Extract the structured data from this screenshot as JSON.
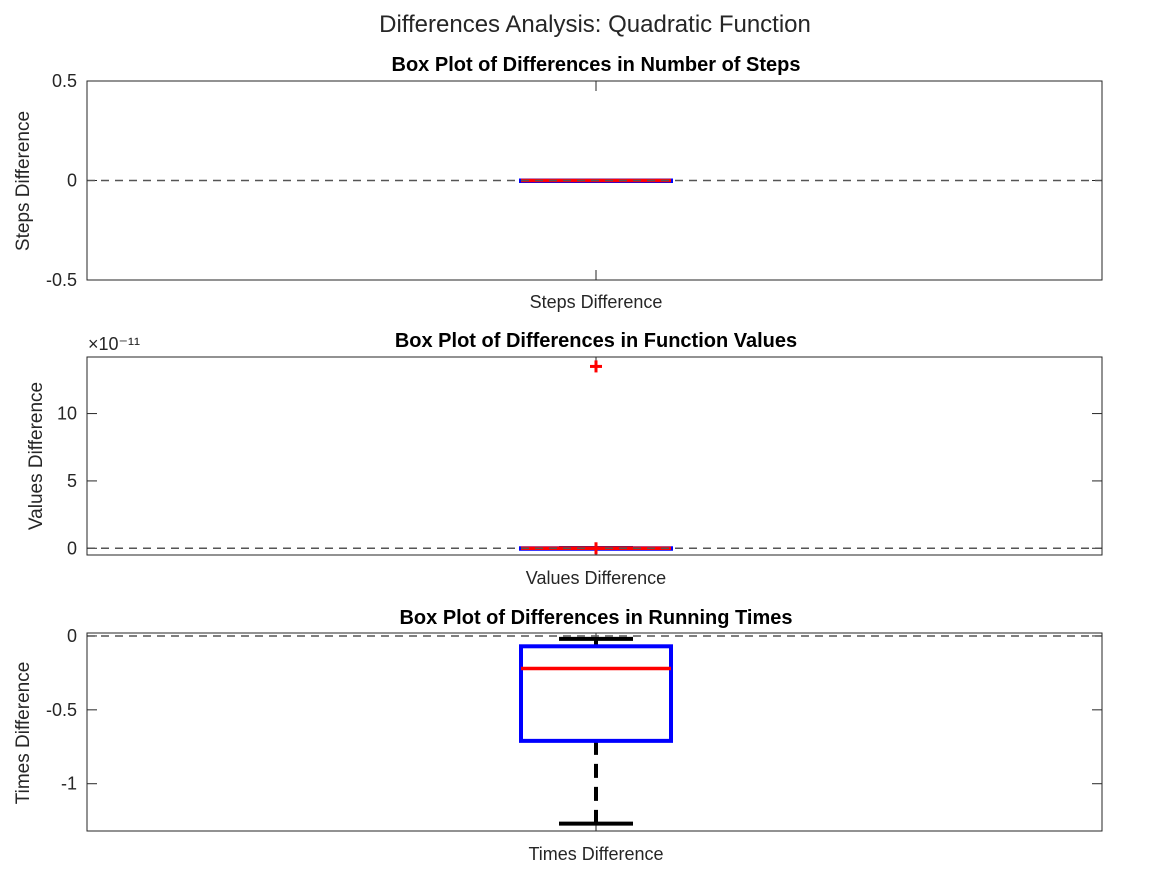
{
  "figure": {
    "suptitle": "Differences Analysis: Quadratic Function"
  },
  "chart_data": [
    {
      "type": "box",
      "title": "Box Plot of Differences in Number of Steps",
      "xlabel": "Steps Difference",
      "ylabel": "Steps Difference",
      "ylim": [
        -0.5,
        0.5
      ],
      "yticks": [
        -0.5,
        0,
        0.5
      ],
      "ytick_labels": [
        "-0.5",
        "0",
        "0.5"
      ],
      "exponent_label": "",
      "reference_line": 0,
      "box": {
        "q1": 0,
        "median": 0,
        "q3": 0,
        "whisker_low": 0,
        "whisker_high": 0,
        "outliers": []
      },
      "colors": {
        "box": "#0000ff",
        "median": "#ff0000",
        "whisker": "#000000",
        "outlier": "#ff0000",
        "reference": "#555555"
      }
    },
    {
      "type": "box",
      "title": "Box Plot of Differences in Function Values",
      "xlabel": "Values Difference",
      "ylabel": "Values Difference",
      "ylim": [
        -5e-12,
        1.42e-10
      ],
      "yticks": [
        0,
        5e-11,
        1e-10
      ],
      "ytick_labels": [
        "0",
        "5",
        "10"
      ],
      "exponent_label": "×10⁻¹¹",
      "reference_line": 0,
      "box": {
        "q1": 0,
        "median": 0,
        "q3": 0,
        "whisker_low": 0,
        "whisker_high": 0,
        "outliers": [
          0,
          1.35e-10
        ]
      },
      "colors": {
        "box": "#0000ff",
        "median": "#ff0000",
        "whisker": "#000000",
        "outlier": "#ff0000",
        "reference": "#555555"
      }
    },
    {
      "type": "box",
      "title": "Box Plot of Differences in Running Times",
      "xlabel": "Times Difference",
      "ylabel": "Times Difference",
      "ylim": [
        -1.32,
        0.02
      ],
      "yticks": [
        -1,
        -0.5,
        0
      ],
      "ytick_labels": [
        "-1",
        "-0.5",
        "0"
      ],
      "exponent_label": "",
      "reference_line": 0,
      "box": {
        "q1": -0.71,
        "median": -0.22,
        "q3": -0.07,
        "whisker_low": -1.27,
        "whisker_high": -0.02,
        "outliers": []
      },
      "colors": {
        "box": "#0000ff",
        "median": "#ff0000",
        "whisker": "#000000",
        "outlier": "#ff0000",
        "reference": "#555555"
      }
    }
  ]
}
